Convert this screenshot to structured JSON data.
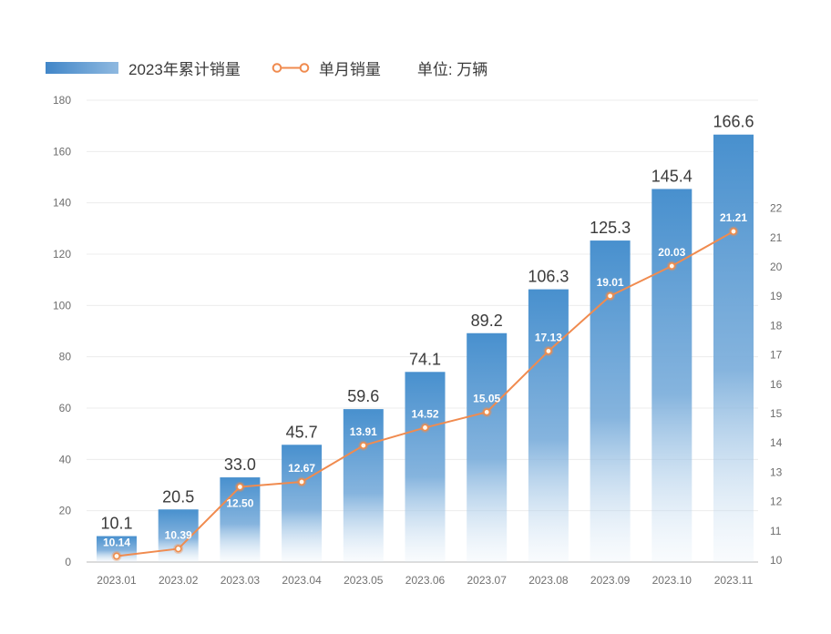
{
  "legend": {
    "bar_label": "2023年累计销量",
    "line_label": "单月销量",
    "unit_label": "单位: 万辆"
  },
  "colors": {
    "bar_top": "#4890CE",
    "bar_mid": "#7FB0DC",
    "bar_bottom": "#D6E6F4",
    "line": "#F08B4F",
    "marker_fill": "#FFF8EE",
    "marker_stroke": "#EF8C4C",
    "grid": "#ECECEC",
    "baseline": "#DCDCDC",
    "axis_text": "#6E6E6E",
    "bar_value_text": "#3B3B3B",
    "line_value_text": "#FFFFFF"
  },
  "chart_data": {
    "type": "combo",
    "categories": [
      "2023.01",
      "2023.02",
      "2023.03",
      "2023.04",
      "2023.05",
      "2023.06",
      "2023.07",
      "2023.08",
      "2023.09",
      "2023.10",
      "2023.11"
    ],
    "series": [
      {
        "name": "2023年累计销量",
        "type": "bar",
        "axis": "left",
        "values": [
          10.1,
          20.5,
          33.0,
          45.7,
          59.6,
          74.1,
          89.2,
          106.3,
          125.3,
          145.4,
          166.6
        ],
        "value_decimals": 1
      },
      {
        "name": "单月销量",
        "type": "line",
        "axis": "right",
        "values": [
          10.14,
          10.39,
          12.5,
          12.67,
          13.91,
          14.52,
          15.05,
          17.13,
          19.01,
          20.03,
          21.21
        ],
        "value_decimals": 2,
        "label_positions": [
          "above",
          "above",
          "below",
          "above",
          "above",
          "above",
          "above",
          "above",
          "above",
          "above",
          "above"
        ]
      }
    ],
    "left_axis": {
      "min": 0,
      "max": 180,
      "step": 20,
      "ticks": [
        0,
        20,
        40,
        60,
        80,
        100,
        120,
        140,
        160,
        180
      ]
    },
    "right_axis": {
      "min": 10,
      "max": 22,
      "step": 1,
      "ticks": [
        10,
        11,
        12,
        13,
        14,
        15,
        16,
        17,
        18,
        19,
        20,
        21,
        22
      ]
    },
    "unit": "单位: 万辆",
    "grid": true,
    "legend_position": "top-left"
  }
}
